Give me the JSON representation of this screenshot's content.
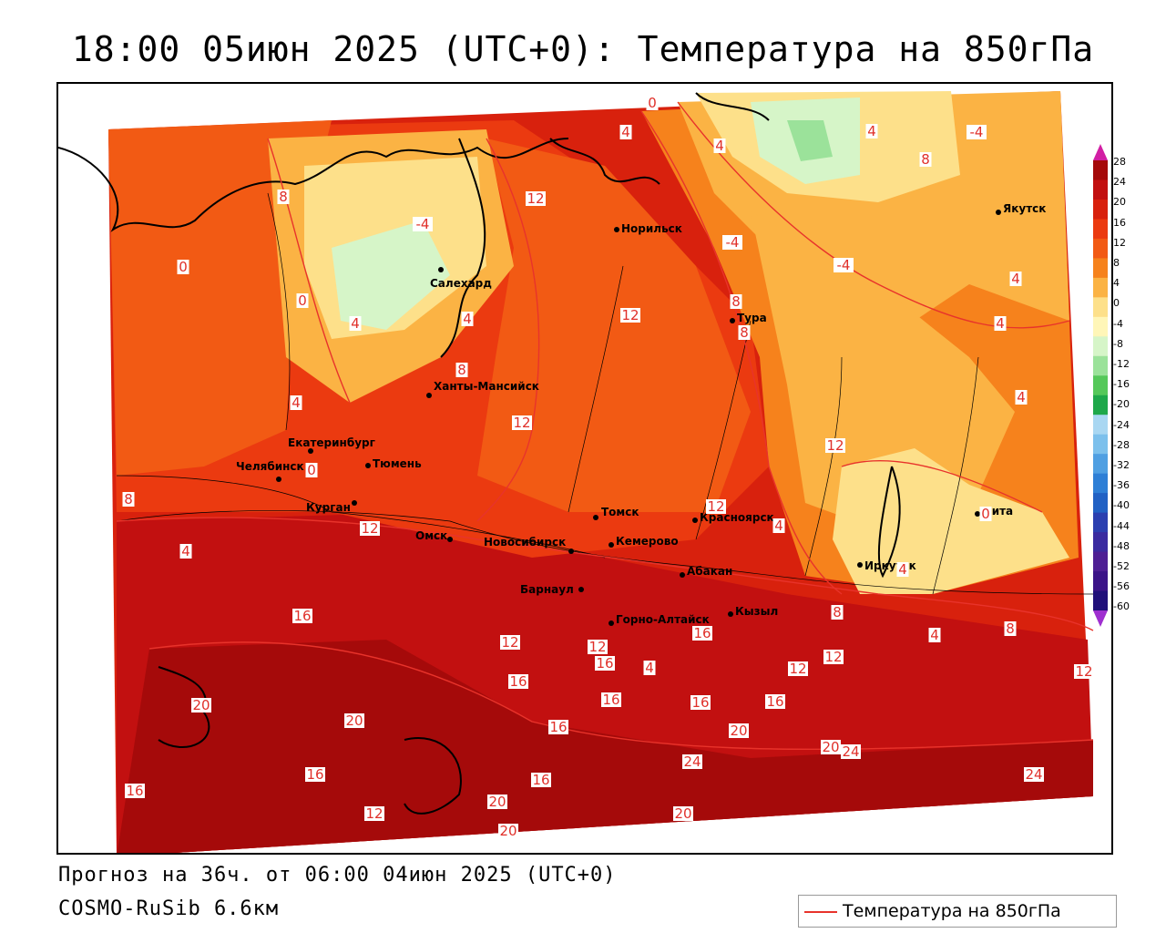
{
  "title": "18:00 05июн 2025 (UTC+0): Температура на 850гПа",
  "footer": {
    "forecast": "Прогноз на 36ч. от 06:00 04июн 2025 (UTC+0)",
    "model": "COSMO-RuSib 6.6км"
  },
  "legend": {
    "label": "Температура на 850гПа",
    "line_color": "#e8332b"
  },
  "colorbar": {
    "labels": [
      "28",
      "24",
      "20",
      "16",
      "12",
      "8",
      "4",
      "0",
      "-4",
      "-8",
      "-12",
      "-16",
      "-20",
      "-24",
      "-28",
      "-32",
      "-36",
      "-40",
      "-44",
      "-48",
      "-52",
      "-56",
      "-60"
    ],
    "colors": [
      "#a50a0a",
      "#c21010",
      "#d8210d",
      "#eb3a10",
      "#f25a14",
      "#f6821c",
      "#fbb344",
      "#fde08a",
      "#fff6b8",
      "#d6f5c8",
      "#9be29a",
      "#55c85a",
      "#1ea84a",
      "#a9d7f2",
      "#7cc0ec",
      "#4f9fe2",
      "#2e7fd6",
      "#2161c4",
      "#2b3fb0",
      "#3a2ba0",
      "#4e1f94",
      "#3b1488",
      "#20107a"
    ],
    "top_arrow_color": "#d21fa4",
    "bottom_arrow_color": "#9f2fd0"
  },
  "cities": [
    {
      "name": "Норильск"
    },
    {
      "name": "Якутск"
    },
    {
      "name": "Салехард"
    },
    {
      "name": "Тура"
    },
    {
      "name": "Ханты-Мансийск"
    },
    {
      "name": "Екатеринбург"
    },
    {
      "name": "Тюмень"
    },
    {
      "name": "Челябинск"
    },
    {
      "name": "Курган"
    },
    {
      "name": "Омск"
    },
    {
      "name": "Томск"
    },
    {
      "name": "Новосибирск"
    },
    {
      "name": "Кемерово"
    },
    {
      "name": "Красноярск"
    },
    {
      "name": "Абакан"
    },
    {
      "name": "Барнаул"
    },
    {
      "name": "Горно-Алтайск"
    },
    {
      "name": "Кызыл"
    },
    {
      "name": "Иркутск"
    },
    {
      "name": "Чита"
    }
  ],
  "isolines": [
    "0",
    "4",
    "-4",
    "4",
    "4",
    "8",
    "-4",
    "12",
    "8",
    "0",
    "-4",
    "-4",
    "0",
    "12",
    "8",
    "4",
    "4",
    "8",
    "4",
    "4",
    "4",
    "8",
    "12",
    "12",
    "4",
    "0",
    "4",
    "0",
    "8",
    "12",
    "4",
    "4",
    "12",
    "16",
    "12",
    "16",
    "16",
    "16",
    "20",
    "20",
    "20",
    "16",
    "16",
    "16",
    "20",
    "24",
    "16",
    "20",
    "24",
    "24",
    "20",
    "16",
    "20",
    "12",
    "12",
    "12",
    "12",
    "4",
    "4",
    "8",
    "8",
    "12",
    "16",
    "16"
  ]
}
